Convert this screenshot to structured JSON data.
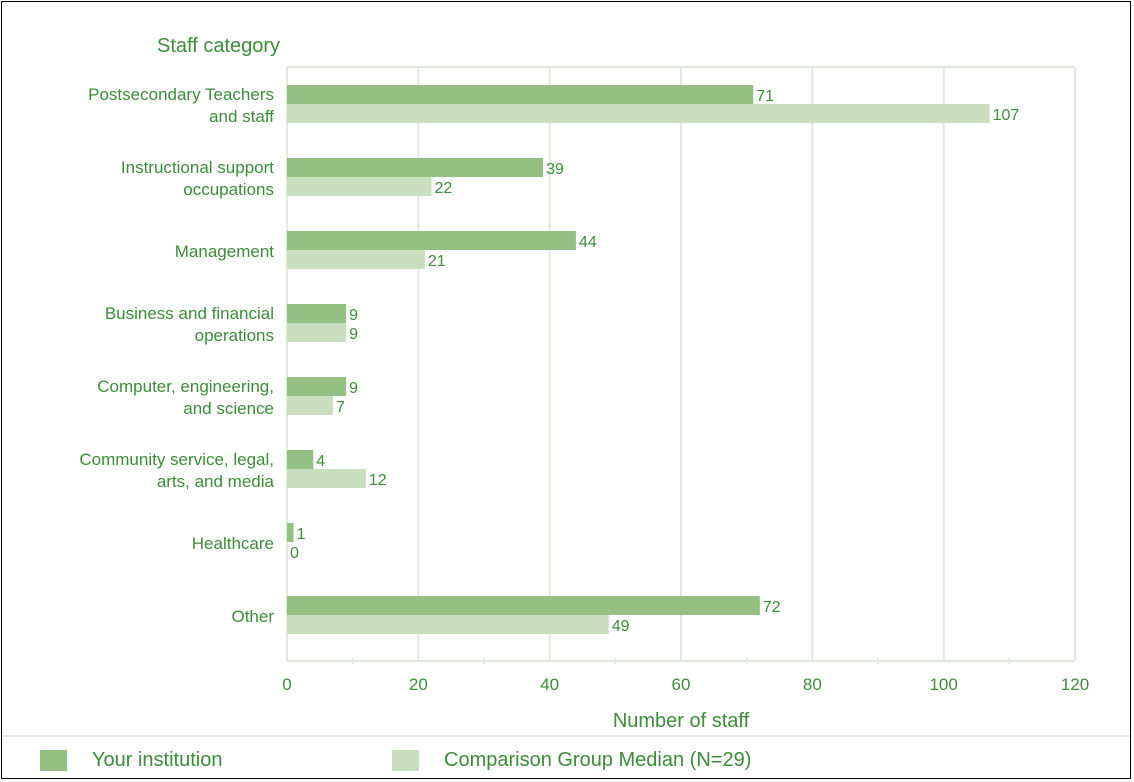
{
  "colors": {
    "your_institution": "#94c084",
    "comparison_group": "#c9dfc0",
    "text": "#3d8c3a",
    "grid": "#dfe9dc"
  },
  "chart_data": {
    "type": "bar",
    "orientation": "horizontal",
    "title": "",
    "ylabel": "Staff category",
    "xlabel": "Number of staff",
    "xlim": [
      0,
      120
    ],
    "xticks": [
      0,
      20,
      40,
      60,
      80,
      100,
      120
    ],
    "grid": true,
    "legend_position": "bottom",
    "categories": [
      [
        "Postsecondary Teachers",
        "and staff"
      ],
      [
        "Instructional support",
        "occupations"
      ],
      [
        "Management"
      ],
      [
        "Business and financial",
        "operations"
      ],
      [
        "Computer, engineering,",
        "and science"
      ],
      [
        "Community service, legal,",
        "arts, and media"
      ],
      [
        "Healthcare"
      ],
      [
        "Other"
      ]
    ],
    "series": [
      {
        "name": "Your institution",
        "values": [
          71,
          39,
          44,
          9,
          9,
          4,
          1,
          72
        ]
      },
      {
        "name": "Comparison Group Median (N=29)",
        "values": [
          107,
          22,
          21,
          9,
          7,
          12,
          0,
          49
        ]
      }
    ]
  }
}
